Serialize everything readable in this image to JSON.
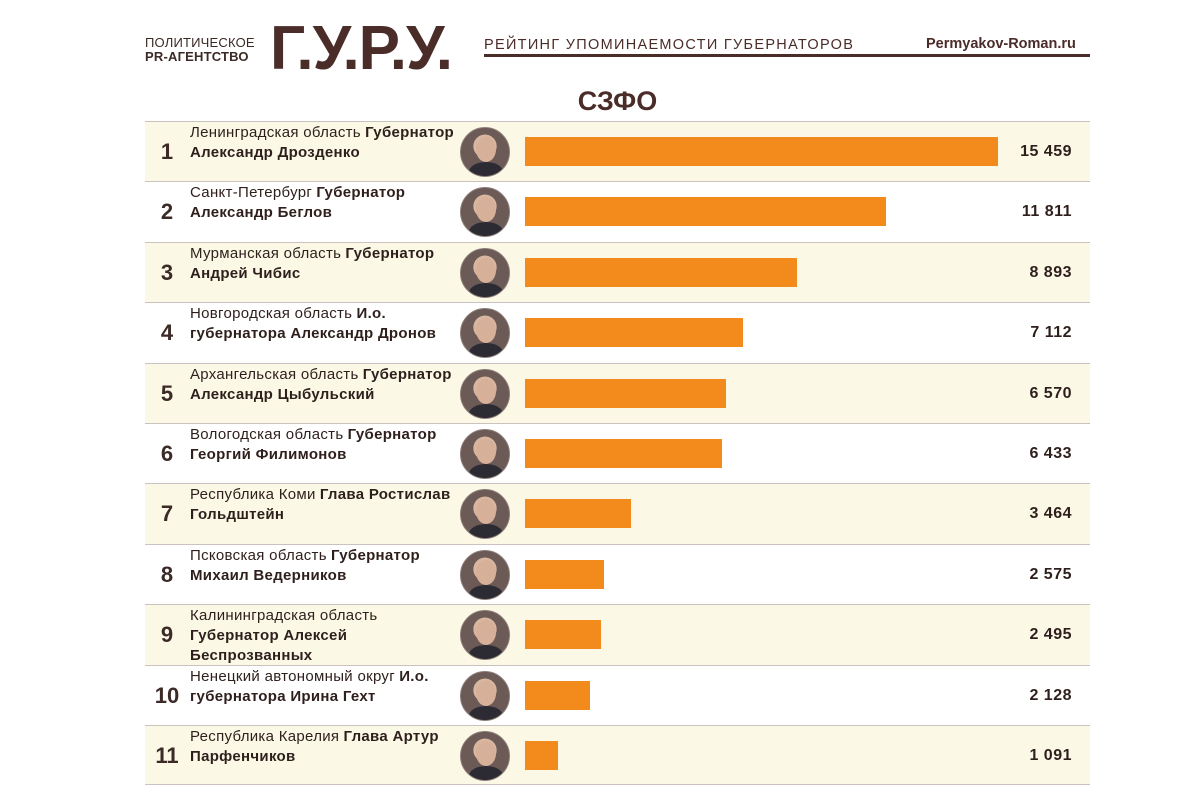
{
  "header": {
    "agency_line1": "ПОЛИТИЧЕСКОЕ",
    "agency_line2": "PR-АГЕНТСТВО",
    "logo": "Г.У.Р.У.",
    "subtitle": "РЕЙТИНГ УПОМИНАЕМОСТИ ГУБЕРНАТОРОВ",
    "site": "Permyakov-Roman.ru"
  },
  "region_title": "СЗФО",
  "colors": {
    "bar": "#f38b1c",
    "brand": "#4a2c28",
    "row_alt": "#fbf9e6"
  },
  "chart_data": {
    "type": "bar",
    "orientation": "horizontal",
    "title": "СЗФО",
    "xlim": [
      0,
      15459
    ],
    "categories": [
      "Ленинградская область",
      "Санкт-Петербург",
      "Мурманская область",
      "Новгородская область",
      "Архангельская область",
      "Вологодская область",
      "Республика Коми",
      "Псковская область",
      "Калининградская область",
      "Ненецкий автономный округ",
      "Республика Карелия"
    ],
    "values": [
      15459,
      11811,
      8893,
      7112,
      6570,
      6433,
      3464,
      2575,
      2495,
      2128,
      1091
    ],
    "rows": [
      {
        "rank": "1",
        "region": "Ленинградская область",
        "name": "Губернатор Александр Дрозденко",
        "value_label": "15 459",
        "value": 15459
      },
      {
        "rank": "2",
        "region": "Санкт-Петербург",
        "name": "Губернатор Александр Беглов",
        "value_label": "11 811",
        "value": 11811
      },
      {
        "rank": "3",
        "region": "Мурманская область",
        "name": "Губернатор Андрей Чибис",
        "value_label": "8 893",
        "value": 8893
      },
      {
        "rank": "4",
        "region": "Новгородская область",
        "name": "И.о. губернатора Александр Дронов",
        "value_label": "7 112",
        "value": 7112
      },
      {
        "rank": "5",
        "region": "Архангельская область",
        "name": "Губернатор Александр Цыбульский",
        "value_label": "6 570",
        "value": 6570
      },
      {
        "rank": "6",
        "region": "Вологодская область",
        "name": "Губернатор Георгий Филимонов",
        "value_label": "6 433",
        "value": 6433
      },
      {
        "rank": "7",
        "region": "Республика Коми",
        "name": "Глава Ростислав Гольдштейн",
        "value_label": "3 464",
        "value": 3464
      },
      {
        "rank": "8",
        "region": "Псковская область",
        "name": "Губернатор Михаил Ведерников",
        "value_label": "2 575",
        "value": 2575
      },
      {
        "rank": "9",
        "region": "Калининградская область",
        "name": "Губернатор Алексей Беспрозванных",
        "value_label": "2 495",
        "value": 2495
      },
      {
        "rank": "10",
        "region": "Ненецкий автономный округ",
        "name": "И.о. губернатора Ирина Гехт",
        "value_label": "2 128",
        "value": 2128
      },
      {
        "rank": "11",
        "region": "Республика Карелия",
        "name": "Глава Артур Парфенчиков",
        "value_label": "1 091",
        "value": 1091
      }
    ]
  }
}
